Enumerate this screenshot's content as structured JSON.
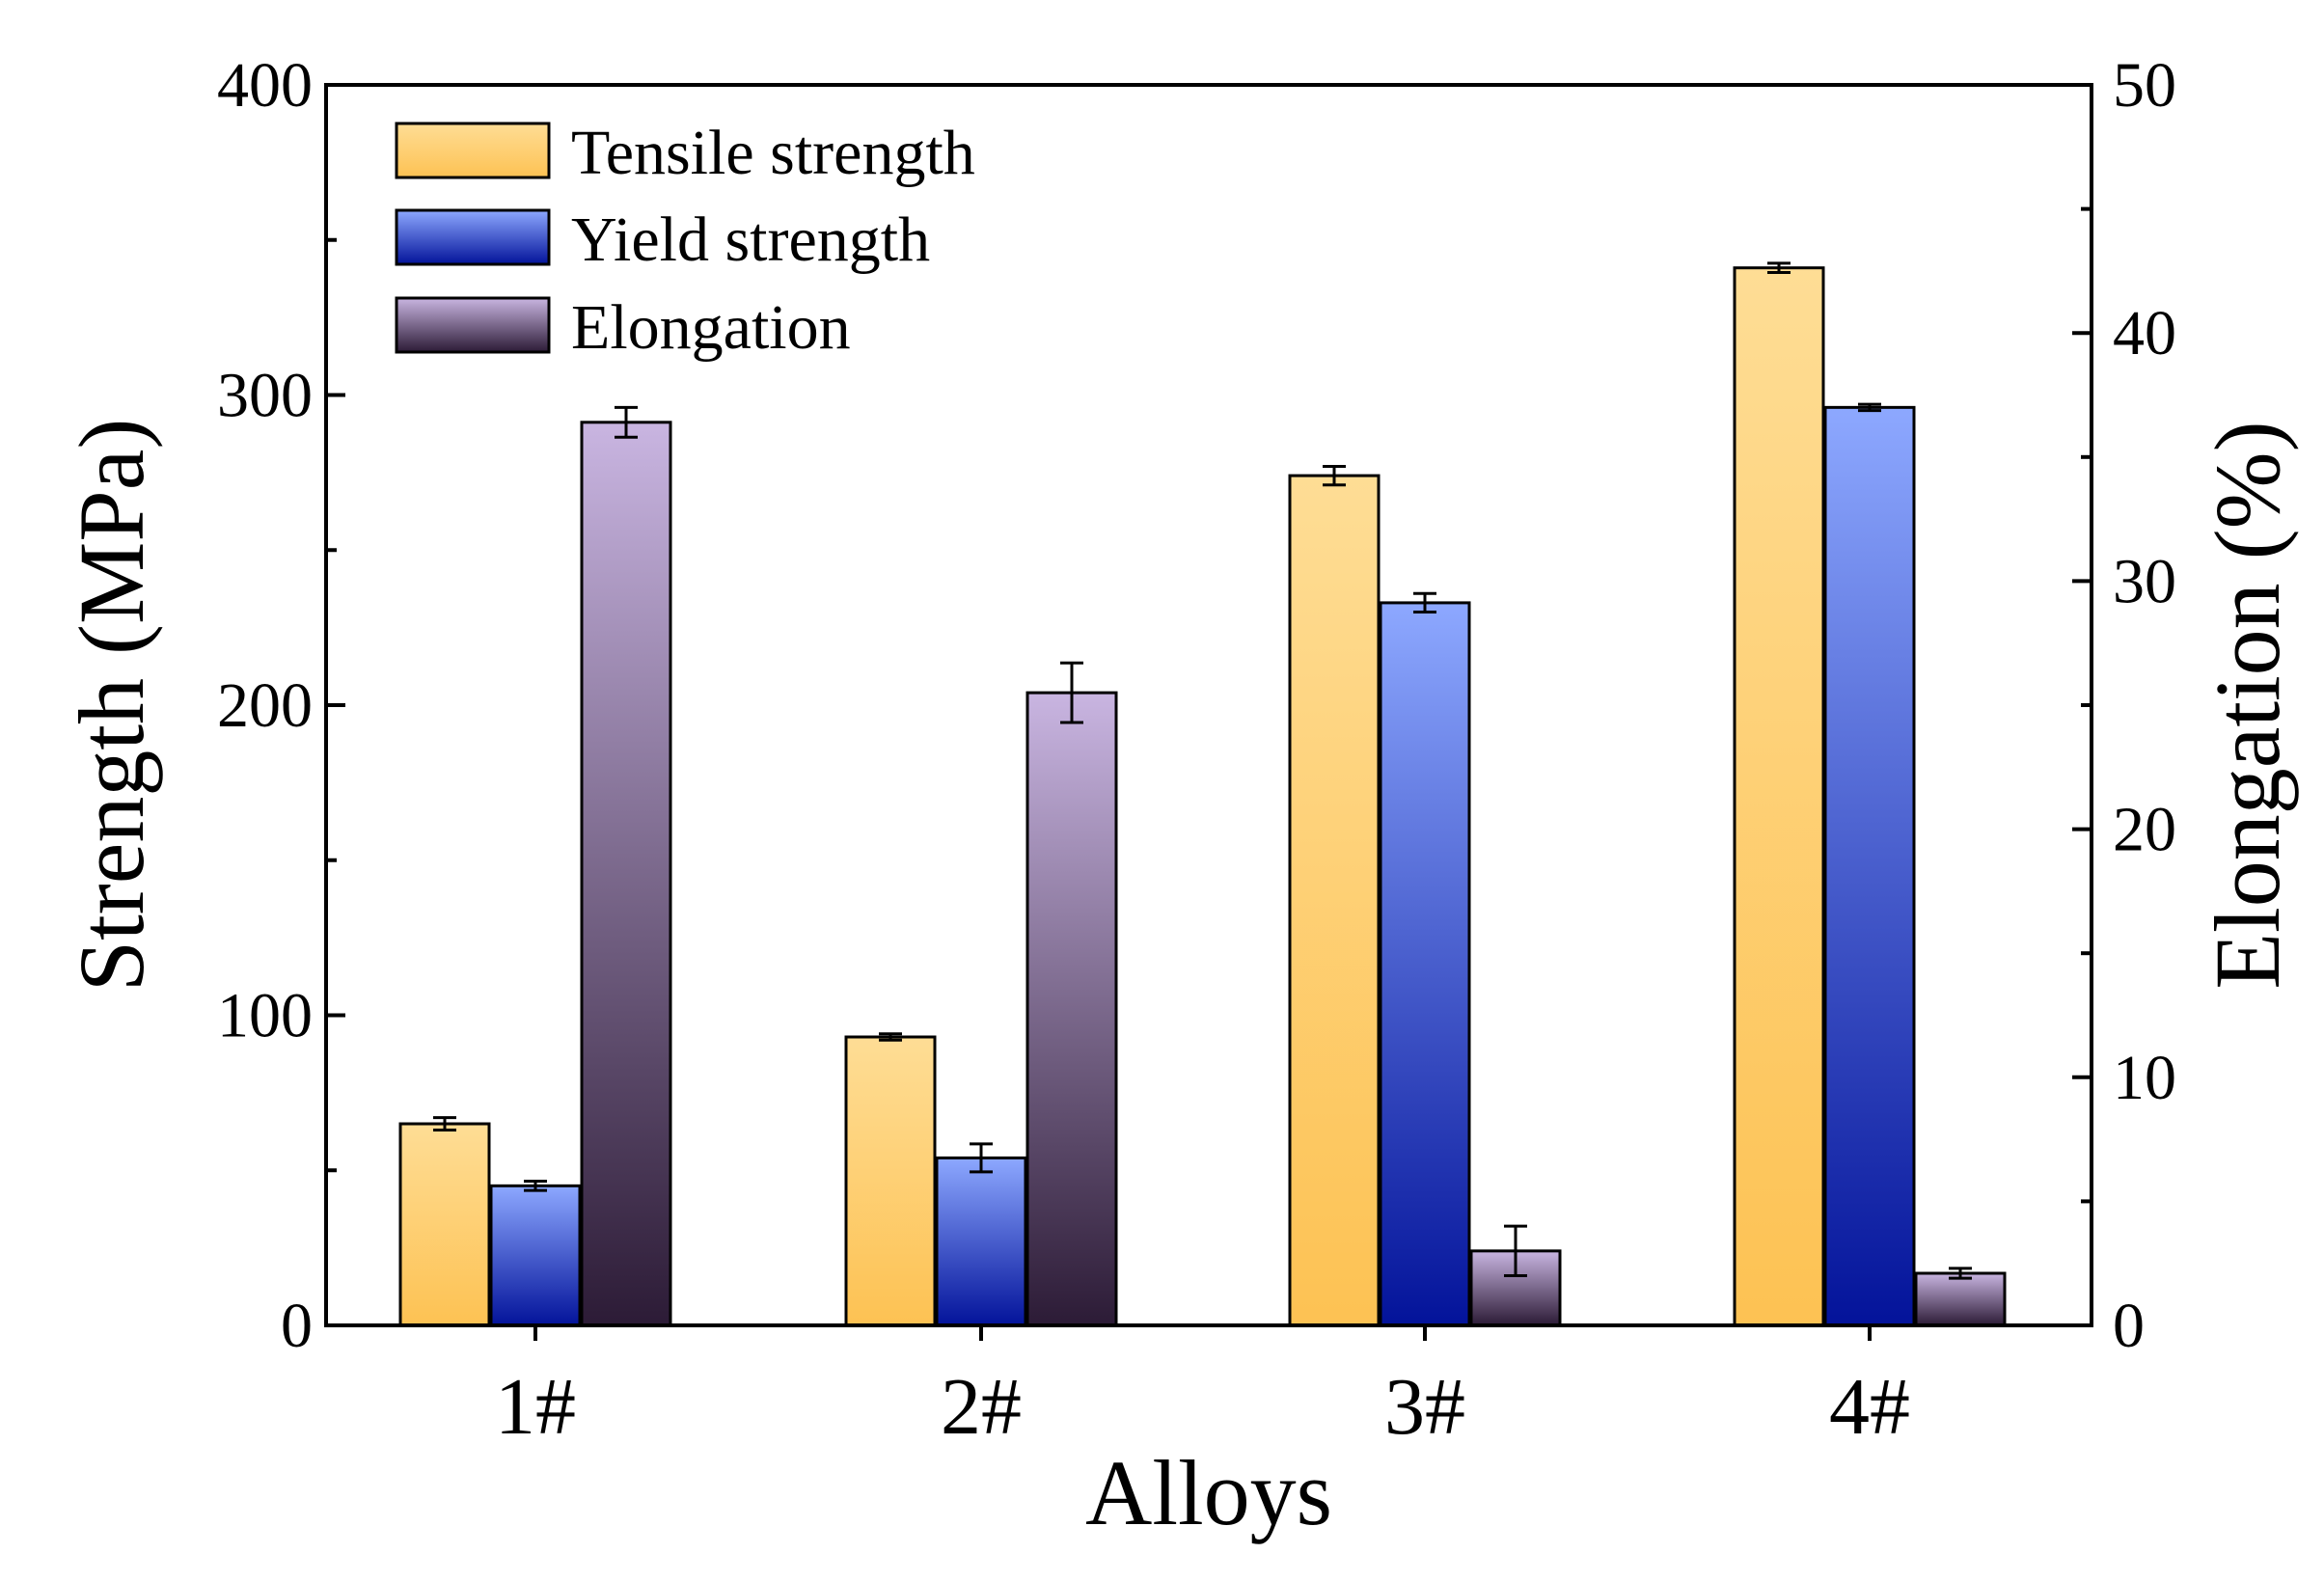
{
  "chart_data": {
    "type": "bar",
    "title": "",
    "xlabel": "Alloys",
    "ylabel": "Strength (MPa)",
    "y2label": "Elongation (%)",
    "ylim": [
      0,
      400
    ],
    "y2lim": [
      0,
      50
    ],
    "yticks": [
      0,
      100,
      200,
      300,
      400
    ],
    "y2ticks": [
      0,
      10,
      20,
      30,
      40,
      50
    ],
    "categories": [
      "1#",
      "2#",
      "3#",
      "4#"
    ],
    "legend_position": "top-left",
    "grid": false,
    "series": [
      {
        "name": "Tensile strength",
        "axis": "left",
        "values": [
          65,
          93,
          274,
          341
        ],
        "errors": [
          2,
          1,
          3,
          1.5
        ],
        "color_top": "#fedd95",
        "color_bottom": "#fdc253"
      },
      {
        "name": "Yield strength",
        "axis": "left",
        "values": [
          45,
          54,
          233,
          296
        ],
        "errors": [
          1.5,
          4.5,
          3,
          1
        ],
        "color_top": "#8da8ff",
        "color_bottom": "#03139a"
      },
      {
        "name": "Elongation",
        "axis": "right",
        "values": [
          36.4,
          25.5,
          3.0,
          2.1
        ],
        "errors": [
          0.6,
          1.2,
          1.0,
          0.2
        ],
        "color_top": "#c9b5e1",
        "color_bottom": "#2c1b36"
      }
    ]
  }
}
